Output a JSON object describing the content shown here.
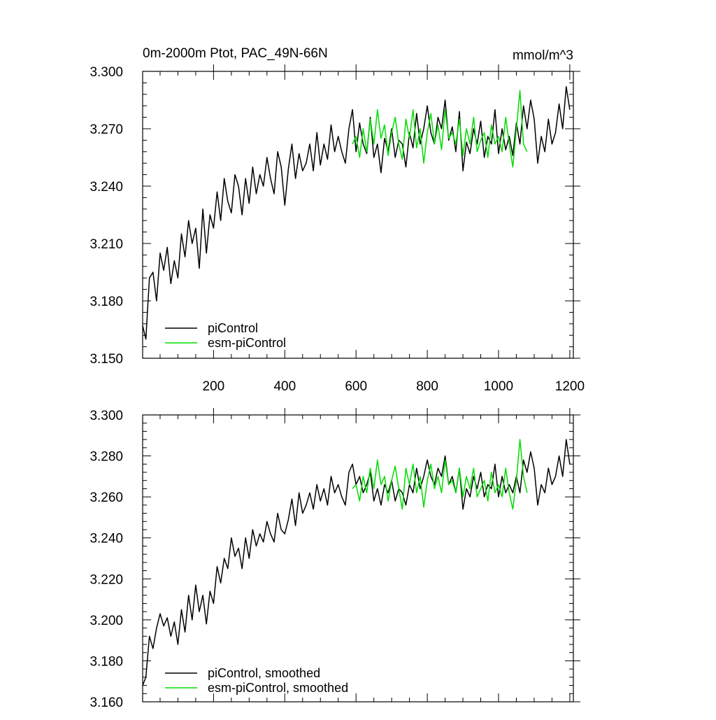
{
  "chart_data": [
    {
      "type": "line",
      "title": "0m-2000m Ptot, PAC_49N-66N",
      "units": "mmol/m^3",
      "xlim": [
        1,
        1210
      ],
      "ylim": [
        3.15,
        3.3
      ],
      "xticks": [
        "200",
        "400",
        "600",
        "800",
        "1000",
        "1200"
      ],
      "yticks": [
        "3.150",
        "3.180",
        "3.210",
        "3.240",
        "3.270",
        "3.300"
      ],
      "legend_position": "bottom-left",
      "series": [
        {
          "name": "piControl",
          "color": "#000000",
          "x": [
            1,
            10,
            20,
            30,
            40,
            50,
            60,
            70,
            80,
            90,
            100,
            110,
            120,
            130,
            140,
            150,
            160,
            170,
            180,
            190,
            200,
            210,
            220,
            230,
            240,
            250,
            260,
            270,
            280,
            290,
            300,
            310,
            320,
            330,
            340,
            350,
            360,
            370,
            380,
            390,
            400,
            410,
            420,
            430,
            440,
            450,
            460,
            470,
            480,
            490,
            500,
            510,
            520,
            530,
            540,
            550,
            560,
            570,
            580,
            590,
            600,
            610,
            620,
            630,
            640,
            650,
            660,
            670,
            680,
            690,
            700,
            710,
            720,
            730,
            740,
            750,
            760,
            770,
            780,
            790,
            800,
            810,
            820,
            830,
            840,
            850,
            860,
            870,
            880,
            890,
            900,
            910,
            920,
            930,
            940,
            950,
            960,
            970,
            980,
            990,
            1000,
            1010,
            1020,
            1030,
            1040,
            1050,
            1060,
            1070,
            1080,
            1090,
            1100,
            1110,
            1120,
            1130,
            1140,
            1150,
            1160,
            1170,
            1180,
            1190,
            1200
          ],
          "values": [
            3.167,
            3.16,
            3.192,
            3.195,
            3.18,
            3.205,
            3.196,
            3.208,
            3.189,
            3.201,
            3.192,
            3.215,
            3.203,
            3.222,
            3.21,
            3.218,
            3.197,
            3.228,
            3.205,
            3.225,
            3.218,
            3.237,
            3.222,
            3.244,
            3.232,
            3.226,
            3.246,
            3.24,
            3.225,
            3.244,
            3.231,
            3.25,
            3.236,
            3.246,
            3.24,
            3.255,
            3.244,
            3.236,
            3.258,
            3.25,
            3.23,
            3.249,
            3.262,
            3.244,
            3.257,
            3.248,
            3.252,
            3.262,
            3.248,
            3.268,
            3.251,
            3.262,
            3.254,
            3.272,
            3.258,
            3.266,
            3.258,
            3.252,
            3.27,
            3.28,
            3.258,
            3.273,
            3.262,
            3.257,
            3.276,
            3.255,
            3.262,
            3.247,
            3.265,
            3.258,
            3.27,
            3.255,
            3.264,
            3.262,
            3.25,
            3.268,
            3.26,
            3.278,
            3.262,
            3.27,
            3.282,
            3.268,
            3.262,
            3.276,
            3.27,
            3.285,
            3.264,
            3.271,
            3.258,
            3.279,
            3.248,
            3.263,
            3.257,
            3.27,
            3.262,
            3.274,
            3.255,
            3.266,
            3.262,
            3.28,
            3.257,
            3.27,
            3.259,
            3.266,
            3.256,
            3.273,
            3.262,
            3.282,
            3.27,
            3.285,
            3.275,
            3.252,
            3.266,
            3.258,
            3.275,
            3.262,
            3.268,
            3.283,
            3.27,
            3.292,
            3.28
          ]
        },
        {
          "name": "esm-piControl",
          "color": "#00dd00",
          "x": [
            590,
            600,
            610,
            620,
            630,
            640,
            650,
            660,
            670,
            680,
            690,
            700,
            710,
            720,
            730,
            740,
            750,
            760,
            770,
            780,
            790,
            800,
            810,
            820,
            830,
            840,
            850,
            860,
            870,
            880,
            890,
            900,
            910,
            920,
            930,
            940,
            950,
            960,
            970,
            980,
            990,
            1000,
            1010,
            1020,
            1030,
            1040,
            1050,
            1060,
            1070,
            1080
          ],
          "values": [
            3.262,
            3.266,
            3.255,
            3.27,
            3.258,
            3.275,
            3.262,
            3.28,
            3.265,
            3.272,
            3.256,
            3.268,
            3.276,
            3.262,
            3.254,
            3.275,
            3.265,
            3.28,
            3.26,
            3.27,
            3.252,
            3.268,
            3.278,
            3.262,
            3.272,
            3.259,
            3.28,
            3.265,
            3.268,
            3.262,
            3.275,
            3.256,
            3.27,
            3.262,
            3.276,
            3.258,
            3.264,
            3.268,
            3.255,
            3.272,
            3.262,
            3.266,
            3.258,
            3.276,
            3.262,
            3.25,
            3.27,
            3.29,
            3.262,
            3.258
          ]
        }
      ]
    },
    {
      "type": "line",
      "xlim": [
        1,
        1210
      ],
      "ylim": [
        3.16,
        3.3
      ],
      "yticks": [
        "3.160",
        "3.180",
        "3.200",
        "3.220",
        "3.240",
        "3.260",
        "3.280",
        "3.300"
      ],
      "legend_position": "bottom-left",
      "series": [
        {
          "name": "piControl, smoothed",
          "color": "#000000",
          "x": [
            1,
            10,
            20,
            30,
            40,
            50,
            60,
            70,
            80,
            90,
            100,
            110,
            120,
            130,
            140,
            150,
            160,
            170,
            180,
            190,
            200,
            210,
            220,
            230,
            240,
            250,
            260,
            270,
            280,
            290,
            300,
            310,
            320,
            330,
            340,
            350,
            360,
            370,
            380,
            390,
            400,
            410,
            420,
            430,
            440,
            450,
            460,
            470,
            480,
            490,
            500,
            510,
            520,
            530,
            540,
            550,
            560,
            570,
            580,
            590,
            600,
            610,
            620,
            630,
            640,
            650,
            660,
            670,
            680,
            690,
            700,
            710,
            720,
            730,
            740,
            750,
            760,
            770,
            780,
            790,
            800,
            810,
            820,
            830,
            840,
            850,
            860,
            870,
            880,
            890,
            900,
            910,
            920,
            930,
            940,
            950,
            960,
            970,
            980,
            990,
            1000,
            1010,
            1020,
            1030,
            1040,
            1050,
            1060,
            1070,
            1080,
            1090,
            1100,
            1110,
            1120,
            1130,
            1140,
            1150,
            1160,
            1170,
            1180,
            1190,
            1200
          ],
          "values": [
            3.168,
            3.172,
            3.192,
            3.186,
            3.196,
            3.203,
            3.197,
            3.201,
            3.192,
            3.199,
            3.188,
            3.205,
            3.194,
            3.212,
            3.2,
            3.217,
            3.204,
            3.212,
            3.198,
            3.214,
            3.208,
            3.226,
            3.218,
            3.23,
            3.225,
            3.24,
            3.231,
            3.235,
            3.225,
            3.24,
            3.23,
            3.244,
            3.236,
            3.242,
            3.238,
            3.248,
            3.242,
            3.238,
            3.252,
            3.244,
            3.242,
            3.249,
            3.259,
            3.246,
            3.262,
            3.252,
            3.256,
            3.262,
            3.254,
            3.266,
            3.258,
            3.264,
            3.256,
            3.27,
            3.262,
            3.266,
            3.26,
            3.256,
            3.272,
            3.276,
            3.266,
            3.27,
            3.262,
            3.266,
            3.272,
            3.258,
            3.264,
            3.256,
            3.266,
            3.262,
            3.268,
            3.258,
            3.264,
            3.262,
            3.256,
            3.266,
            3.262,
            3.274,
            3.264,
            3.27,
            3.278,
            3.27,
            3.266,
            3.274,
            3.27,
            3.28,
            3.266,
            3.27,
            3.262,
            3.274,
            3.254,
            3.264,
            3.26,
            3.27,
            3.264,
            3.272,
            3.26,
            3.266,
            3.264,
            3.276,
            3.26,
            3.27,
            3.262,
            3.266,
            3.262,
            3.27,
            3.262,
            3.278,
            3.272,
            3.282,
            3.274,
            3.256,
            3.266,
            3.262,
            3.274,
            3.266,
            3.27,
            3.28,
            3.27,
            3.288,
            3.276
          ]
        },
        {
          "name": "esm-piControl, smoothed",
          "color": "#00dd00",
          "x": [
            590,
            600,
            610,
            620,
            630,
            640,
            650,
            660,
            670,
            680,
            690,
            700,
            710,
            720,
            730,
            740,
            750,
            760,
            770,
            780,
            790,
            800,
            810,
            820,
            830,
            840,
            850,
            860,
            870,
            880,
            890,
            900,
            910,
            920,
            930,
            940,
            950,
            960,
            970,
            980,
            990,
            1000,
            1010,
            1020,
            1030,
            1040,
            1050,
            1060,
            1070,
            1080
          ],
          "values": [
            3.264,
            3.266,
            3.258,
            3.27,
            3.262,
            3.274,
            3.264,
            3.278,
            3.266,
            3.27,
            3.258,
            3.268,
            3.275,
            3.264,
            3.254,
            3.274,
            3.266,
            3.276,
            3.262,
            3.27,
            3.255,
            3.268,
            3.276,
            3.264,
            3.27,
            3.262,
            3.278,
            3.266,
            3.268,
            3.262,
            3.274,
            3.26,
            3.27,
            3.264,
            3.274,
            3.26,
            3.264,
            3.268,
            3.258,
            3.272,
            3.262,
            3.266,
            3.26,
            3.274,
            3.262,
            3.254,
            3.268,
            3.288,
            3.27,
            3.262
          ]
        }
      ]
    }
  ]
}
